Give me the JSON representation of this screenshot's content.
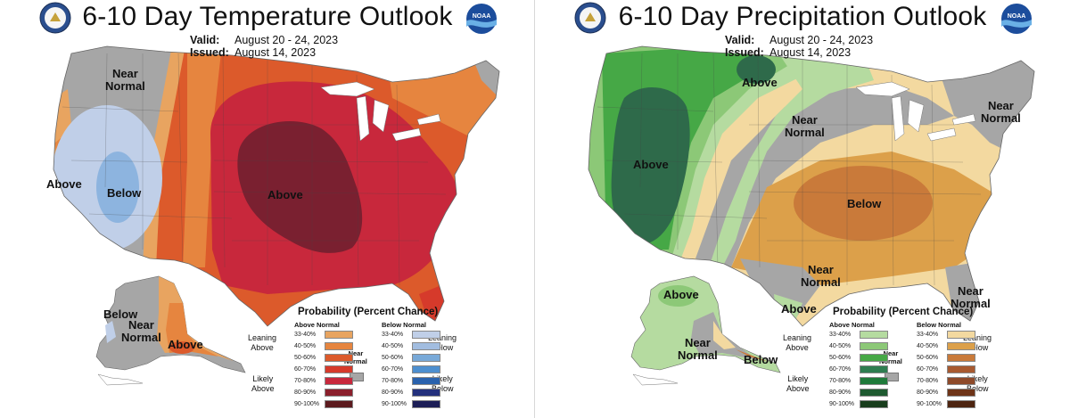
{
  "panels": [
    {
      "title": "6-10 Day Temperature Outlook",
      "valid_key": "Valid:",
      "valid": "August 20 - 24, 2023",
      "issued_key": "Issued:",
      "issued": "August 14, 2023",
      "logos": [
        "doc-seal-icon",
        "noaa-logo-icon"
      ],
      "map_labels": {
        "near_normal_west": "Near\nNormal",
        "above_west_coast": "Above",
        "below_west": "Below",
        "above_center": "Above",
        "below_alaska": "Below",
        "near_normal_alaska": "Near\nNormal",
        "above_alaska": "Above"
      },
      "legend": {
        "title": "Probability (Percent Chance)",
        "left_header": "Above Normal",
        "right_header": "Below Normal",
        "near_normal": "Near\nNormal",
        "left_groups": [
          "Leaning\nAbove",
          "Likely\nAbove"
        ],
        "right_groups": [
          "Leaning\nBelow",
          "Likely\nBelow"
        ],
        "ranges": [
          "33-40%",
          "40-50%",
          "50-60%",
          "60-70%",
          "70-80%",
          "80-90%",
          "90-100%"
        ],
        "left_colors": [
          "#e8a460",
          "#e6853f",
          "#dc5a2b",
          "#d63a2b",
          "#c8283c",
          "#8b1f2c",
          "#5c1a1e"
        ],
        "right_colors": [
          "#c0cfe8",
          "#a2bde0",
          "#78a9d8",
          "#4d8fcf",
          "#2a62ad",
          "#23307c",
          "#1c1e56"
        ]
      }
    },
    {
      "title": "6-10 Day Precipitation Outlook",
      "valid_key": "Valid:",
      "valid": "August 20 - 24, 2023",
      "issued_key": "Issued:",
      "issued": "August 14, 2023",
      "logos": [
        "doc-seal-icon",
        "noaa-logo-icon"
      ],
      "map_labels": {
        "above_north": "Above",
        "above_west": "Above",
        "near_normal_center": "Near\nNormal",
        "below_center": "Below",
        "near_normal_northeast": "Near\nNormal",
        "near_normal_south": "Near\nNormal",
        "above_texas": "Above",
        "near_normal_florida": "Near\nNormal",
        "above_alaska": "Above",
        "near_normal_alaska": "Near\nNormal",
        "below_alaska": "Below"
      },
      "legend": {
        "title": "Probability (Percent Chance)",
        "left_header": "Above Normal",
        "right_header": "Below Normal",
        "near_normal": "Near\nNormal",
        "left_groups": [
          "Leaning\nAbove",
          "Likely\nAbove"
        ],
        "right_groups": [
          "Leaning\nBelow",
          "Likely\nBelow"
        ],
        "ranges": [
          "33-40%",
          "40-50%",
          "50-60%",
          "60-70%",
          "70-80%",
          "80-90%",
          "90-100%"
        ],
        "left_colors": [
          "#b5dba0",
          "#8cc877",
          "#46a846",
          "#2e7d50",
          "#1f7a3a",
          "#1e5a30",
          "#183d1c"
        ],
        "right_colors": [
          "#f3d9a0",
          "#dca04a",
          "#c97a3a",
          "#a85a30",
          "#8e4a2a",
          "#6e3418",
          "#4d2410"
        ]
      }
    }
  ]
}
